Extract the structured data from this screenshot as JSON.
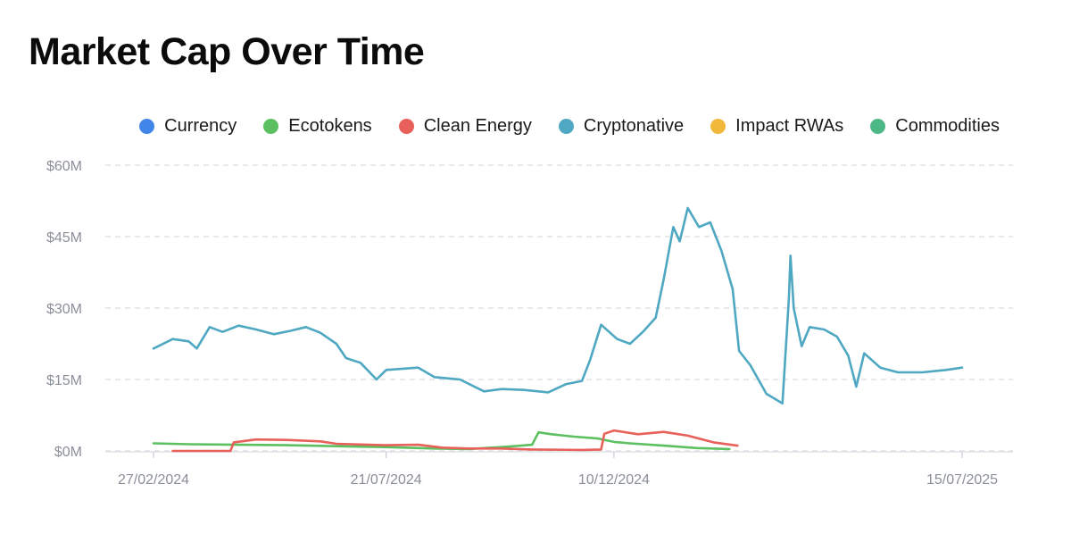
{
  "title": "Market Cap Over Time",
  "colors": {
    "currency": "#4285e8",
    "ecotokens": "#5cc060",
    "clean_energy": "#e8605a",
    "cryptonative": "#4fa8c2",
    "impact_rwas": "#f1b83c",
    "commodities": "#4cb886"
  },
  "legend": [
    {
      "label": "Currency",
      "color": "#4285e8"
    },
    {
      "label": "Ecotokens",
      "color": "#5cc060"
    },
    {
      "label": "Clean Energy",
      "color": "#e8605a"
    },
    {
      "label": "Cryptonative",
      "color": "#4fa8c2"
    },
    {
      "label": "Impact RWAs",
      "color": "#f1b83c"
    },
    {
      "label": "Commodities",
      "color": "#4cb886"
    }
  ],
  "chart_data": {
    "type": "line",
    "title": "Market Cap Over Time",
    "xlabel": "",
    "ylabel": "",
    "xlim": [
      "2024-02-27",
      "2025-07-15"
    ],
    "ylim": [
      0,
      60
    ],
    "y_unit": "$M",
    "y_ticks": [
      "$0M",
      "$15M",
      "$30M",
      "$45M",
      "$60M"
    ],
    "y_tick_values": [
      0,
      15,
      30,
      45,
      60
    ],
    "x_ticks": [
      "27/02/2024",
      "21/07/2024",
      "10/12/2024",
      "15/07/2025"
    ],
    "x_tick_dates": [
      "2024-02-27",
      "2024-07-21",
      "2024-12-10",
      "2025-07-15"
    ],
    "grid": "horizontal dashed",
    "legend_position": "top-right",
    "series": [
      {
        "name": "Currency",
        "color": "#4285e8",
        "points": []
      },
      {
        "name": "Ecotokens",
        "color": "#5cc060",
        "points": [
          [
            "2024-02-27",
            1.6
          ],
          [
            "2024-03-20",
            1.4
          ],
          [
            "2024-04-20",
            1.3
          ],
          [
            "2024-05-20",
            1.2
          ],
          [
            "2024-06-20",
            1.0
          ],
          [
            "2024-07-20",
            0.8
          ],
          [
            "2024-08-20",
            0.5
          ],
          [
            "2024-09-10",
            0.4
          ],
          [
            "2024-10-05",
            0.9
          ],
          [
            "2024-10-20",
            1.3
          ],
          [
            "2024-10-24",
            3.9
          ],
          [
            "2024-11-01",
            3.5
          ],
          [
            "2024-11-15",
            3.0
          ],
          [
            "2024-11-30",
            2.6
          ],
          [
            "2024-12-10",
            1.9
          ],
          [
            "2024-12-20",
            1.6
          ],
          [
            "2025-01-10",
            1.1
          ],
          [
            "2025-01-31",
            0.6
          ],
          [
            "2025-02-20",
            0.4
          ]
        ]
      },
      {
        "name": "Clean Energy",
        "color": "#e8605a",
        "points": [
          [
            "2024-03-10",
            0.0
          ],
          [
            "2024-04-15",
            0.0
          ],
          [
            "2024-04-17",
            1.8
          ],
          [
            "2024-05-01",
            2.4
          ],
          [
            "2024-05-20",
            2.3
          ],
          [
            "2024-06-10",
            2.0
          ],
          [
            "2024-06-20",
            1.5
          ],
          [
            "2024-07-20",
            1.2
          ],
          [
            "2024-08-10",
            1.3
          ],
          [
            "2024-08-25",
            0.7
          ],
          [
            "2024-09-10",
            0.5
          ],
          [
            "2024-09-30",
            0.5
          ],
          [
            "2024-10-20",
            0.3
          ],
          [
            "2024-11-20",
            0.2
          ],
          [
            "2024-12-02",
            0.3
          ],
          [
            "2024-12-04",
            3.6
          ],
          [
            "2024-12-10",
            4.3
          ],
          [
            "2024-12-25",
            3.5
          ],
          [
            "2025-01-10",
            4.0
          ],
          [
            "2025-01-25",
            3.2
          ],
          [
            "2025-02-10",
            1.8
          ],
          [
            "2025-02-25",
            1.1
          ]
        ]
      },
      {
        "name": "Cryptonative",
        "color": "#4fa8c2",
        "points": [
          [
            "2024-02-27",
            21.5
          ],
          [
            "2024-03-10",
            23.5
          ],
          [
            "2024-03-20",
            23.0
          ],
          [
            "2024-03-25",
            21.5
          ],
          [
            "2024-04-02",
            26.0
          ],
          [
            "2024-04-10",
            25.0
          ],
          [
            "2024-04-20",
            26.3
          ],
          [
            "2024-05-01",
            25.5
          ],
          [
            "2024-05-12",
            24.5
          ],
          [
            "2024-05-22",
            25.2
          ],
          [
            "2024-06-01",
            26.0
          ],
          [
            "2024-06-10",
            24.8
          ],
          [
            "2024-06-20",
            22.5
          ],
          [
            "2024-06-26",
            19.5
          ],
          [
            "2024-07-05",
            18.5
          ],
          [
            "2024-07-15",
            15.0
          ],
          [
            "2024-07-21",
            17.0
          ],
          [
            "2024-08-10",
            17.5
          ],
          [
            "2024-08-20",
            15.5
          ],
          [
            "2024-09-05",
            15.0
          ],
          [
            "2024-09-20",
            12.5
          ],
          [
            "2024-10-01",
            13.0
          ],
          [
            "2024-10-15",
            12.8
          ],
          [
            "2024-10-30",
            12.3
          ],
          [
            "2024-11-10",
            14.0
          ],
          [
            "2024-11-20",
            14.7
          ],
          [
            "2024-11-25",
            19.0
          ],
          [
            "2024-12-02",
            26.5
          ],
          [
            "2024-12-12",
            23.5
          ],
          [
            "2024-12-20",
            22.5
          ],
          [
            "2024-12-28",
            25.0
          ],
          [
            "2025-01-05",
            28.0
          ],
          [
            "2025-01-10",
            36.0
          ],
          [
            "2025-01-16",
            47.0
          ],
          [
            "2025-01-20",
            44.0
          ],
          [
            "2025-01-25",
            51.0
          ],
          [
            "2025-02-01",
            47.0
          ],
          [
            "2025-02-08",
            48.0
          ],
          [
            "2025-02-15",
            42.0
          ],
          [
            "2025-02-22",
            34.0
          ],
          [
            "2025-02-26",
            21.0
          ],
          [
            "2025-03-05",
            18.0
          ],
          [
            "2025-03-15",
            12.0
          ],
          [
            "2025-03-25",
            10.0
          ],
          [
            "2025-03-29",
            32.0
          ],
          [
            "2025-03-30",
            41.0
          ],
          [
            "2025-04-01",
            30.0
          ],
          [
            "2025-04-06",
            22.0
          ],
          [
            "2025-04-11",
            26.0
          ],
          [
            "2025-04-20",
            25.5
          ],
          [
            "2025-04-28",
            24.0
          ],
          [
            "2025-05-05",
            20.0
          ],
          [
            "2025-05-10",
            13.5
          ],
          [
            "2025-05-15",
            20.5
          ],
          [
            "2025-05-25",
            17.5
          ],
          [
            "2025-06-05",
            16.5
          ],
          [
            "2025-06-20",
            16.5
          ],
          [
            "2025-07-05",
            17.0
          ],
          [
            "2025-07-15",
            17.5
          ]
        ]
      },
      {
        "name": "Impact RWAs",
        "color": "#f1b83c",
        "points": []
      },
      {
        "name": "Commodities",
        "color": "#4cb886",
        "points": []
      }
    ]
  }
}
